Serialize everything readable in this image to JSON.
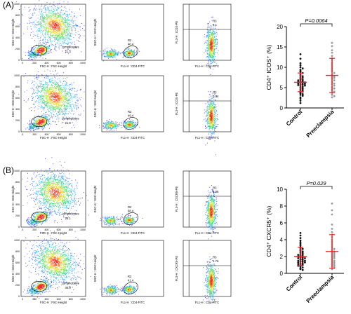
{
  "panel_labels": [
    "(A)",
    "(B)"
  ],
  "flow_panels": [
    {
      "rows": [
        {
          "fsc": {
            "gate_label": "Lymphocytes",
            "gate_value": "21.3",
            "xlabel": "FSC-H : FSC-Height",
            "ylabel": "SSC-H : SSC-Height",
            "xticks": [
              "0",
              "200",
              "400",
              "600",
              "800",
              "1000"
            ],
            "yticks": [
              "0",
              "200",
              "400",
              "600",
              "800",
              "1000"
            ]
          },
          "cd4": {
            "gate_label": "R2",
            "gate_value": "46.4",
            "xlabel": "FL1-H : CD4-FITC",
            "ylabel": "SSC-H : SSC-Height"
          },
          "marker": {
            "gate_label": "R3",
            "gate_value": "6.1",
            "xlabel": "FL1-H : CD4-FITC",
            "ylabel": "FL3-H : ICOS-PE"
          }
        },
        {
          "fsc": {
            "gate_label": "Lymphocytes",
            "gate_value": "21.9",
            "xlabel": "FSC-H : FSC-Height",
            "ylabel": "SSC-H : SSC-Height",
            "xticks": [
              "0",
              "200",
              "400",
              "600",
              "800",
              "1000"
            ],
            "yticks": [
              "0",
              "200",
              "400",
              "600",
              "800",
              "1000"
            ]
          },
          "cd4": {
            "gate_label": "R2",
            "gate_value": "49.4",
            "xlabel": "FL1-H : CD4-FITC",
            "ylabel": "SSC-H : SSC-Height"
          },
          "marker": {
            "gate_label": "R3",
            "gate_value": "2.34",
            "xlabel": "FL1-H : CD4-FITC",
            "ylabel": "FL3-H : ICOS-PE"
          }
        }
      ]
    },
    {
      "rows": [
        {
          "fsc": {
            "gate_label": "Lymphocytes",
            "gate_value": "25.1",
            "xlabel": "FSC-H : FSC-Height",
            "ylabel": "SSC-H : SSC-Height",
            "xticks": [
              "0",
              "200",
              "400",
              "600",
              "800",
              "1000"
            ],
            "yticks": [
              "0",
              "200",
              "400",
              "600",
              "800",
              "1000"
            ]
          },
          "cd4": {
            "gate_label": "R2",
            "gate_value": "68.4",
            "xlabel": "FL1-H : CD4-FITC",
            "ylabel": "SSC-H : SSC-Height"
          },
          "marker": {
            "gate_label": "R3",
            "gate_value": "5.86",
            "xlabel": "FL1-H : CD4-FITC",
            "ylabel": "FL3-H : CXCR5-PE"
          }
        },
        {
          "fsc": {
            "gate_label": "Lymphocytes",
            "gate_value": "30.6",
            "xlabel": "FSC-H : FSC-Height",
            "ylabel": "SSC-H : SSC-Height",
            "xticks": [
              "0",
              "200",
              "400",
              "600",
              "800",
              "1000"
            ],
            "yticks": [
              "0",
              "200",
              "400",
              "600",
              "800",
              "1000"
            ]
          },
          "cd4": {
            "gate_label": "R2",
            "gate_value": "41.4",
            "xlabel": "FL1-H : CD4-FITC",
            "ylabel": "SSC-H : SSC-Height"
          },
          "marker": {
            "gate_label": "R3",
            "gate_value": "1.72",
            "xlabel": "FL1-H : CD4-FITC",
            "ylabel": "FL3-H : CXCR5-PE"
          }
        }
      ]
    }
  ],
  "colors": {
    "dot_control": "#111111",
    "dot_preeclampsia": "#9a9a9a",
    "error_bar": "#e8262a",
    "axis": "#000000"
  },
  "chart_data": [
    {
      "type": "scatter",
      "title": "",
      "xlabel": "",
      "ylabel": "CD4⁺ ICOS⁺ (%)",
      "ylim": [
        0,
        20
      ],
      "yticks": [
        0,
        5,
        10,
        15,
        20
      ],
      "categories": [
        "Control",
        "Preeclampsia"
      ],
      "p_value": "P=0.0064",
      "grid": false,
      "series": [
        {
          "name": "Control",
          "mean": 6.3,
          "sd": 2.3,
          "values": [
            13.2,
            12.1,
            11.0,
            10.5,
            10.0,
            9.7,
            9.4,
            9.1,
            8.9,
            8.6,
            8.3,
            8.0,
            7.8,
            7.6,
            7.4,
            7.2,
            7.0,
            6.9,
            6.8,
            6.6,
            6.5,
            6.4,
            6.3,
            6.2,
            6.1,
            6.0,
            5.9,
            5.8,
            5.7,
            5.6,
            5.5,
            5.4,
            5.2,
            5.0,
            4.8,
            4.6,
            4.4,
            4.2,
            4.0,
            3.8,
            3.6,
            3.4,
            3.2,
            3.0,
            2.6,
            2.3,
            1.8,
            1.2
          ]
        },
        {
          "name": "Preeclampsia",
          "mean": 8.0,
          "sd": 4.2,
          "values": [
            16.0,
            15.2,
            14.2,
            13.6,
            12.8,
            12.2,
            11.8,
            11.3,
            10.9,
            10.6,
            10.2,
            9.8,
            9.5,
            9.2,
            8.9,
            8.6,
            8.3,
            8.0,
            7.8,
            7.6,
            7.4,
            7.2,
            7.0,
            6.8,
            6.5,
            6.2,
            6.0,
            5.8,
            5.5,
            5.2,
            5.0,
            4.8,
            4.6,
            4.3,
            4.0,
            3.8,
            3.5,
            3.2,
            2.9,
            2.6
          ]
        }
      ]
    },
    {
      "type": "scatter",
      "title": "",
      "xlabel": "",
      "ylabel": "CD4⁺ CXCR5⁺ (%)",
      "ylim": [
        0,
        10
      ],
      "yticks": [
        0,
        2,
        4,
        6,
        8,
        10
      ],
      "categories": [
        "Control",
        "Preeclampsia"
      ],
      "p_value": "P=0.029",
      "grid": false,
      "series": [
        {
          "name": "Control",
          "mean": 2.0,
          "sd": 1.1,
          "values": [
            4.8,
            4.5,
            4.2,
            3.9,
            3.7,
            3.5,
            3.3,
            3.1,
            3.0,
            2.9,
            2.8,
            2.7,
            2.6,
            2.5,
            2.4,
            2.3,
            2.2,
            2.2,
            2.1,
            2.0,
            2.0,
            1.9,
            1.9,
            1.8,
            1.8,
            1.7,
            1.7,
            1.6,
            1.6,
            1.5,
            1.5,
            1.4,
            1.4,
            1.3,
            1.3,
            1.2,
            1.2,
            1.1,
            1.0,
            1.0,
            0.9,
            0.8,
            0.7,
            0.6,
            0.5,
            0.4
          ]
        },
        {
          "name": "Preeclampsia",
          "mean": 2.6,
          "sd": 2.0,
          "values": [
            8.3,
            7.5,
            7.0,
            5.8,
            5.3,
            4.9,
            4.6,
            4.3,
            4.0,
            3.8,
            3.6,
            3.4,
            3.2,
            3.0,
            2.9,
            2.8,
            2.7,
            2.6,
            2.5,
            2.4,
            2.3,
            2.2,
            2.1,
            2.0,
            1.9,
            1.8,
            1.7,
            1.6,
            1.5,
            1.4,
            1.3,
            1.2,
            1.1,
            1.0,
            0.9,
            0.8,
            0.7,
            0.5
          ]
        }
      ]
    }
  ]
}
